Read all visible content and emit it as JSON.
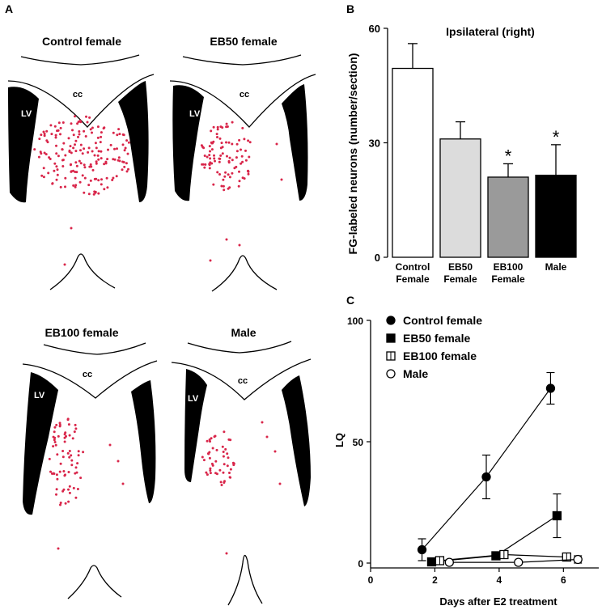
{
  "panel_labels": {
    "a": "A",
    "b": "B",
    "c": "C"
  },
  "brain_sections": [
    {
      "title": "Control female",
      "cc": "cc",
      "lv": "LV"
    },
    {
      "title": "EB50 female",
      "cc": "cc",
      "lv": "LV"
    },
    {
      "title": "EB100 female",
      "cc": "cc",
      "lv": "LV"
    },
    {
      "title": "Male",
      "cc": "cc",
      "lv": "LV"
    }
  ],
  "colors": {
    "dots": "#d9264a",
    "ink": "#000000",
    "bar_eb50": "#dcdcdc",
    "bar_eb100": "#9a9a9a",
    "bar_male": "#000000",
    "bar_control": "#ffffff"
  },
  "chart_data": [
    {
      "type": "bar",
      "title": "Ipsilateral (right)",
      "ylabel": "FG-labeled neurons (number/section)",
      "xlabel": "",
      "ylim": [
        0,
        60
      ],
      "yticks": [
        "0",
        "30",
        "60"
      ],
      "categories": [
        [
          "Control",
          "Female"
        ],
        [
          "EB50",
          "Female"
        ],
        [
          "EB100",
          "Female"
        ],
        [
          "Male"
        ]
      ],
      "values": [
        49.5,
        31,
        21,
        21.5
      ],
      "errors": [
        6.5,
        4.5,
        3.5,
        8
      ],
      "significance": [
        "",
        "",
        "*",
        "*"
      ],
      "grid": false
    },
    {
      "type": "line",
      "title": "",
      "xlabel": "Days after E2 treatment",
      "ylabel": "LQ",
      "xlim": [
        0,
        7.2
      ],
      "ylim": [
        -2,
        100
      ],
      "xticks": [
        0,
        2,
        4,
        6
      ],
      "yticks": [
        0,
        50,
        100
      ],
      "legend_position": "top-left",
      "grid": false,
      "series": [
        {
          "name": "Control female",
          "marker": "filled-circle",
          "x": [
            1.6,
            3.6,
            5.6
          ],
          "y": [
            5.5,
            35.5,
            72
          ],
          "err": [
            4.5,
            9,
            6.5
          ]
        },
        {
          "name": "EB50 female",
          "marker": "filled-square",
          "x": [
            1.9,
            3.9,
            5.8
          ],
          "y": [
            0.5,
            3,
            19.5
          ],
          "err": [
            0,
            1.5,
            9
          ]
        },
        {
          "name": "EB100 female",
          "marker": "open-square",
          "x": [
            2.15,
            4.15,
            6.1
          ],
          "y": [
            1,
            3.5,
            2.5
          ],
          "err": [
            0.5,
            1.5,
            1.5
          ]
        },
        {
          "name": "Male",
          "marker": "open-circle",
          "x": [
            2.45,
            4.6,
            6.45
          ],
          "y": [
            0.3,
            0.3,
            1.5
          ],
          "err": [
            0,
            0,
            1.5
          ]
        }
      ]
    }
  ]
}
